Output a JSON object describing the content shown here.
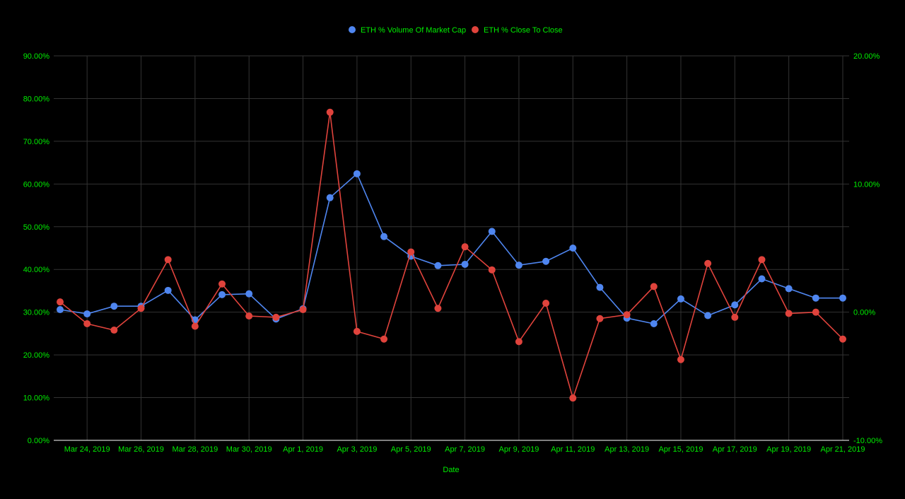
{
  "chart_data": {
    "type": "line",
    "xlabel": "Date",
    "x": [
      "Mar 23, 2019",
      "Mar 24, 2019",
      "Mar 25, 2019",
      "Mar 26, 2019",
      "Mar 27, 2019",
      "Mar 28, 2019",
      "Mar 29, 2019",
      "Mar 30, 2019",
      "Mar 31, 2019",
      "Apr 1, 2019",
      "Apr 2, 2019",
      "Apr 3, 2019",
      "Apr 4, 2019",
      "Apr 5, 2019",
      "Apr 6, 2019",
      "Apr 7, 2019",
      "Apr 8, 2019",
      "Apr 9, 2019",
      "Apr 10, 2019",
      "Apr 11, 2019",
      "Apr 12, 2019",
      "Apr 13, 2019",
      "Apr 14, 2019",
      "Apr 15, 2019",
      "Apr 16, 2019",
      "Apr 17, 2019",
      "Apr 18, 2019",
      "Apr 19, 2019",
      "Apr 20, 2019",
      "Apr 21, 2019"
    ],
    "x_tick_labels": [
      "Mar 24, 2019",
      "Mar 26, 2019",
      "Mar 28, 2019",
      "Mar 30, 2019",
      "Apr 1, 2019",
      "Apr 3, 2019",
      "Apr 5, 2019",
      "Apr 7, 2019",
      "Apr 9, 2019",
      "Apr 11, 2019",
      "Apr 13, 2019",
      "Apr 15, 2019",
      "Apr 17, 2019",
      "Apr 19, 2019",
      "Apr 21, 2019"
    ],
    "y_left": {
      "range": [
        0,
        90
      ],
      "ticks": [
        "0.00%",
        "10.00%",
        "20.00%",
        "30.00%",
        "40.00%",
        "50.00%",
        "60.00%",
        "70.00%",
        "80.00%",
        "90.00%"
      ]
    },
    "y_right": {
      "range": [
        -10,
        20
      ],
      "ticks": [
        "-10.00%",
        "0.00%",
        "10.00%",
        "20.00%"
      ]
    },
    "grid": true,
    "legend_position": "top",
    "series": [
      {
        "name": "ETH % Volume Of Market Cap",
        "axis": "left",
        "color": "#4f86f0",
        "values": [
          30.6,
          29.6,
          31.4,
          31.4,
          35.1,
          28.2,
          34.1,
          34.3,
          28.4,
          30.8,
          56.8,
          62.4,
          47.7,
          43.1,
          40.9,
          41.2,
          48.9,
          41.0,
          41.9,
          45.0,
          35.8,
          28.6,
          27.3,
          33.1,
          29.2,
          31.7,
          37.8,
          35.5,
          33.3,
          33.3
        ]
      },
      {
        "name": "ETH % Close To Close",
        "axis": "right",
        "color": "#e0433c",
        "values": [
          0.8,
          -0.9,
          -1.4,
          0.3,
          4.1,
          -1.1,
          2.2,
          -0.3,
          -0.4,
          0.2,
          15.6,
          -1.5,
          -2.1,
          4.7,
          0.3,
          5.1,
          3.3,
          -2.3,
          0.7,
          -6.7,
          -0.5,
          -0.2,
          2.0,
          -3.7,
          3.8,
          -0.4,
          4.1,
          -0.1,
          0.0,
          -2.1
        ]
      }
    ]
  }
}
